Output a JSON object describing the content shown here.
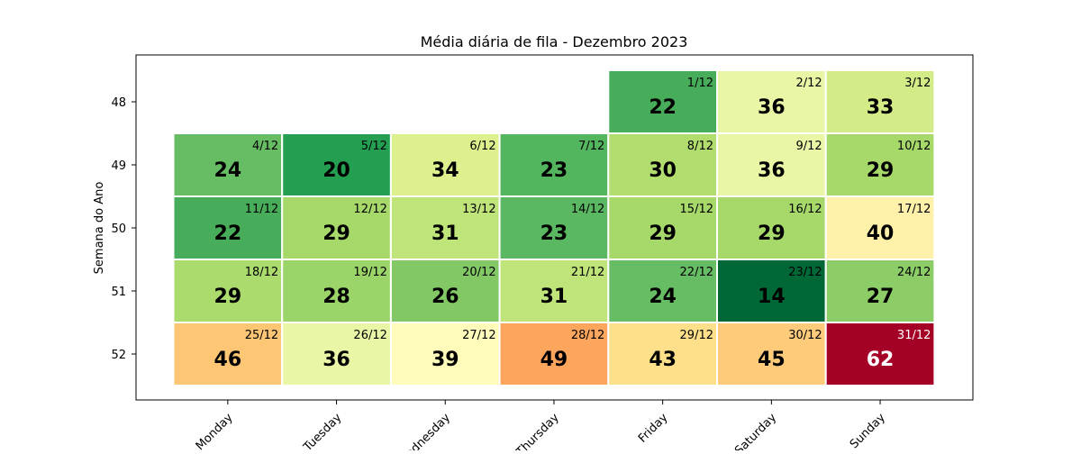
{
  "chart_data": {
    "type": "heatmap",
    "title": "Média diária de fila - Dezembro 2023",
    "xlabel": "",
    "ylabel": "Semana do Ano",
    "x_categories": [
      "Monday",
      "Tuesday",
      "Wednesday",
      "Thursday",
      "Friday",
      "Saturday",
      "Sunday"
    ],
    "y_categories": [
      "48",
      "49",
      "50",
      "51",
      "52"
    ],
    "colormap": "RdYlGn_r",
    "value_range": [
      14,
      62
    ],
    "cells": [
      {
        "week": "48",
        "day": "Friday",
        "date": "1/12",
        "value": 22,
        "color": "#48ad5a"
      },
      {
        "week": "48",
        "day": "Saturday",
        "date": "2/12",
        "value": 36,
        "color": "#e9f6a5"
      },
      {
        "week": "48",
        "day": "Sunday",
        "date": "3/12",
        "value": 33,
        "color": "#d3ec87"
      },
      {
        "week": "49",
        "day": "Monday",
        "date": "4/12",
        "value": 24,
        "color": "#66bd63"
      },
      {
        "week": "49",
        "day": "Tuesday",
        "date": "5/12",
        "value": 20,
        "color": "#249f52"
      },
      {
        "week": "49",
        "day": "Wednesday",
        "date": "6/12",
        "value": 34,
        "color": "#dcf08e"
      },
      {
        "week": "49",
        "day": "Thursday",
        "date": "7/12",
        "value": 23,
        "color": "#53b55e"
      },
      {
        "week": "49",
        "day": "Friday",
        "date": "8/12",
        "value": 30,
        "color": "#b1dc6e"
      },
      {
        "week": "49",
        "day": "Saturday",
        "date": "9/12",
        "value": 36,
        "color": "#e9f6a5"
      },
      {
        "week": "49",
        "day": "Sunday",
        "date": "10/12",
        "value": 29,
        "color": "#a6d96a"
      },
      {
        "week": "50",
        "day": "Monday",
        "date": "11/12",
        "value": 22,
        "color": "#48ad5a"
      },
      {
        "week": "50",
        "day": "Tuesday",
        "date": "12/12",
        "value": 29,
        "color": "#a6d96a"
      },
      {
        "week": "50",
        "day": "Wednesday",
        "date": "13/12",
        "value": 31,
        "color": "#bfe47a"
      },
      {
        "week": "50",
        "day": "Thursday",
        "date": "14/12",
        "value": 23,
        "color": "#5bb862"
      },
      {
        "week": "50",
        "day": "Friday",
        "date": "15/12",
        "value": 29,
        "color": "#a6d96a"
      },
      {
        "week": "50",
        "day": "Saturday",
        "date": "16/12",
        "value": 29,
        "color": "#a6d96a"
      },
      {
        "week": "50",
        "day": "Sunday",
        "date": "17/12",
        "value": 40,
        "color": "#fff1aa"
      },
      {
        "week": "51",
        "day": "Monday",
        "date": "18/12",
        "value": 29,
        "color": "#acdb6d"
      },
      {
        "week": "51",
        "day": "Tuesday",
        "date": "19/12",
        "value": 28,
        "color": "#9bd468"
      },
      {
        "week": "51",
        "day": "Wednesday",
        "date": "20/12",
        "value": 26,
        "color": "#82c865"
      },
      {
        "week": "51",
        "day": "Thursday",
        "date": "21/12",
        "value": 31,
        "color": "#bfe47a"
      },
      {
        "week": "51",
        "day": "Friday",
        "date": "22/12",
        "value": 24,
        "color": "#66bd63"
      },
      {
        "week": "51",
        "day": "Saturday",
        "date": "23/12",
        "value": 14,
        "color": "#006837"
      },
      {
        "week": "51",
        "day": "Sunday",
        "date": "24/12",
        "value": 27,
        "color": "#8ccd67"
      },
      {
        "week": "52",
        "day": "Monday",
        "date": "25/12",
        "value": 46,
        "color": "#fdc675"
      },
      {
        "week": "52",
        "day": "Tuesday",
        "date": "26/12",
        "value": 36,
        "color": "#e9f6a5"
      },
      {
        "week": "52",
        "day": "Wednesday",
        "date": "27/12",
        "value": 39,
        "color": "#fffbba"
      },
      {
        "week": "52",
        "day": "Thursday",
        "date": "28/12",
        "value": 49,
        "color": "#fca55d"
      },
      {
        "week": "52",
        "day": "Friday",
        "date": "29/12",
        "value": 43,
        "color": "#fee08b"
      },
      {
        "week": "52",
        "day": "Saturday",
        "date": "30/12",
        "value": 45,
        "color": "#fdcb7a"
      },
      {
        "week": "52",
        "day": "Sunday",
        "date": "31/12",
        "value": 62,
        "color": "#a50026"
      }
    ]
  }
}
